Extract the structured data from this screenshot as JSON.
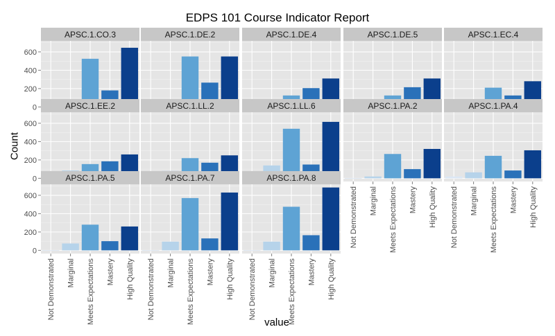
{
  "chart_data": {
    "type": "bar",
    "title": "EDPS 101 Course Indicator Report",
    "xlabel": "value",
    "ylabel": "Count",
    "categories": [
      "Not Demonstrated",
      "Marginal",
      "Meets Expectations",
      "Mastery",
      "High Quality"
    ],
    "bar_colors": [
      "#dbe6f4",
      "#b6d3ea",
      "#5ea3d4",
      "#2a71b9",
      "#0b3f8c"
    ],
    "yticks": [
      0,
      200,
      400,
      600
    ],
    "ylim": [
      -35,
      720
    ],
    "facets": [
      {
        "name": "APSC.1.CO.3",
        "values": [
          3,
          85,
          525,
          180,
          645
        ]
      },
      {
        "name": "APSC.1.DE.2",
        "values": [
          3,
          75,
          550,
          265,
          550
        ]
      },
      {
        "name": "APSC.1.DE.4",
        "values": [
          25,
          50,
          125,
          205,
          310
        ]
      },
      {
        "name": "APSC.1.DE.5",
        "values": [
          22,
          50,
          125,
          215,
          310
        ]
      },
      {
        "name": "APSC.1.EC.4",
        "values": [
          20,
          70,
          210,
          125,
          280
        ]
      },
      {
        "name": "APSC.1.EE.2",
        "values": [
          35,
          85,
          155,
          185,
          260
        ]
      },
      {
        "name": "APSC.1.LL.2",
        "values": [
          3,
          80,
          220,
          170,
          250
        ]
      },
      {
        "name": "APSC.1.LL.6",
        "values": [
          5,
          140,
          540,
          150,
          615
        ]
      },
      {
        "name": "APSC.1.PA.2",
        "values": [
          3,
          20,
          265,
          100,
          320
        ]
      },
      {
        "name": "APSC.1.PA.4",
        "values": [
          20,
          65,
          245,
          85,
          305
        ]
      },
      {
        "name": "APSC.1.PA.5",
        "values": [
          3,
          75,
          280,
          100,
          260
        ]
      },
      {
        "name": "APSC.1.PA.7",
        "values": [
          3,
          95,
          570,
          130,
          630
        ]
      },
      {
        "name": "APSC.1.PA.8",
        "values": [
          3,
          95,
          475,
          165,
          685
        ]
      }
    ]
  }
}
